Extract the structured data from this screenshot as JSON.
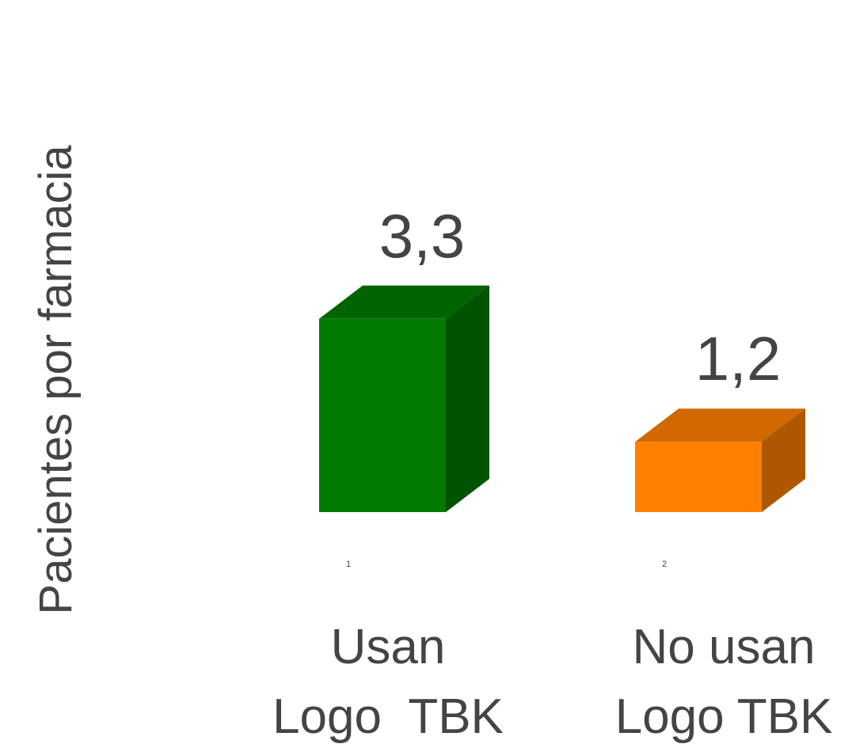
{
  "chart_data": {
    "type": "bar3d",
    "y_label": "Pacientes por farmacia",
    "categories": [
      [
        "Usan",
        "Logo  TBK"
      ],
      [
        "No usan",
        "Logo TBK"
      ]
    ],
    "tick_labels": [
      "1",
      "2"
    ],
    "values": [
      3.3,
      1.2
    ],
    "value_labels": [
      "3,3",
      "1,2"
    ],
    "colors": [
      "#007a00",
      "#ff8000"
    ]
  }
}
